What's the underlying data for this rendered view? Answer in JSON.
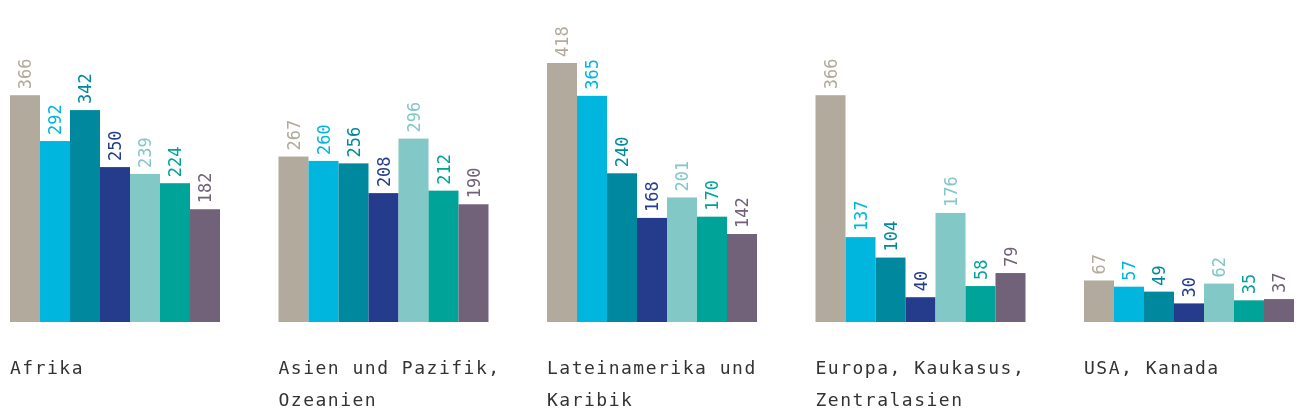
{
  "chart_data": {
    "type": "bar",
    "categories": [
      "Afrika",
      "Asien und Pazifik, Ozeanien",
      "Lateinamerika und Karibik",
      "Europa, Kaukasus, Zentralasien",
      "USA, Kanada"
    ],
    "series": [
      {
        "color": "#b2aa9c",
        "values": [
          366,
          267,
          418,
          366,
          67
        ]
      },
      {
        "color": "#00b5de",
        "values": [
          292,
          260,
          365,
          137,
          57
        ]
      },
      {
        "color": "#00899e",
        "values": [
          342,
          256,
          240,
          104,
          49
        ]
      },
      {
        "color": "#253c8d",
        "values": [
          250,
          208,
          168,
          40,
          30
        ]
      },
      {
        "color": "#82c8c6",
        "values": [
          239,
          296,
          201,
          176,
          62
        ]
      },
      {
        "color": "#00a398",
        "values": [
          224,
          212,
          170,
          58,
          35
        ]
      },
      {
        "color": "#716279",
        "values": [
          182,
          190,
          142,
          79,
          37
        ]
      }
    ],
    "data_labels": true
  }
}
